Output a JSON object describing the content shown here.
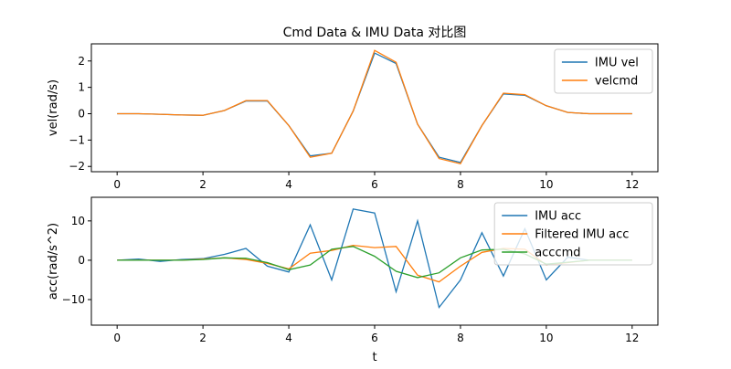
{
  "figure": {
    "title": "Cmd Data & IMU Data 对比图"
  },
  "chart_data": [
    {
      "type": "line",
      "title": "Cmd Data & IMU Data 对比图",
      "xlabel": "",
      "ylabel": "vel(rad/s)",
      "xlim": [
        -0.6,
        12.6
      ],
      "ylim": [
        -2.2,
        2.65
      ],
      "xticks": [
        0,
        2,
        4,
        6,
        8,
        10,
        12
      ],
      "yticks": [
        -2,
        -1,
        0,
        1,
        2
      ],
      "grid": false,
      "legend": "top-right",
      "x": [
        0,
        0.5,
        1,
        1.5,
        2,
        2.5,
        3,
        3.5,
        4,
        4.5,
        5,
        5.5,
        6,
        6.5,
        7,
        7.5,
        8,
        8.5,
        9,
        9.5,
        10,
        10.5,
        11,
        11.5,
        12
      ],
      "series": [
        {
          "name": "IMU vel",
          "color": "#1f77b4",
          "values": [
            0,
            0,
            -0.02,
            -0.05,
            -0.06,
            0.12,
            0.48,
            0.48,
            -0.45,
            -1.6,
            -1.5,
            0.1,
            2.3,
            1.9,
            -0.4,
            -1.65,
            -1.85,
            -0.45,
            0.75,
            0.7,
            0.3,
            0.05,
            0,
            0,
            0
          ]
        },
        {
          "name": "velcmd",
          "color": "#ff7f0e",
          "values": [
            0,
            0,
            -0.02,
            -0.05,
            -0.06,
            0.12,
            0.5,
            0.5,
            -0.45,
            -1.65,
            -1.5,
            0.1,
            2.4,
            1.95,
            -0.4,
            -1.7,
            -1.9,
            -0.45,
            0.78,
            0.72,
            0.3,
            0.05,
            0,
            0,
            0
          ]
        }
      ]
    },
    {
      "type": "line",
      "xlabel": "t",
      "ylabel": "acc(rad/s^2)",
      "xlim": [
        -0.6,
        12.6
      ],
      "ylim": [
        -16.5,
        16
      ],
      "xticks": [
        0,
        2,
        4,
        6,
        8,
        10,
        12
      ],
      "yticks": [
        -10,
        0,
        10
      ],
      "grid": false,
      "legend": "top-right",
      "x": [
        0,
        0.5,
        1,
        1.5,
        2,
        2.5,
        3,
        3.5,
        4,
        4.5,
        5,
        5.5,
        6,
        6.5,
        7,
        7.5,
        8,
        8.5,
        9,
        9.5,
        10,
        10.5,
        11,
        11.5,
        12
      ],
      "series": [
        {
          "name": "IMU acc",
          "color": "#1f77b4",
          "values": [
            0,
            0.3,
            -0.3,
            0.2,
            0.4,
            1.5,
            3,
            -1.5,
            -3,
            9,
            -5,
            13,
            12,
            -8,
            10,
            -12,
            -5,
            7,
            -4,
            8,
            -5,
            0.8,
            0,
            0,
            0
          ]
        },
        {
          "name": "Filtered IMU acc",
          "color": "#ff7f0e",
          "values": [
            0,
            0,
            0,
            0,
            0.3,
            0.6,
            0.2,
            -0.8,
            -2.2,
            1.8,
            2.5,
            3.8,
            3.2,
            3.5,
            -3.8,
            -5.5,
            -1.5,
            2,
            3,
            2.8,
            -1.2,
            -0.6,
            0,
            0,
            0
          ]
        },
        {
          "name": "acccmd",
          "color": "#2ca02c",
          "values": [
            0,
            0,
            0,
            0,
            0.2,
            0.6,
            0.5,
            -0.6,
            -2.4,
            -1.2,
            2.8,
            3.5,
            1,
            -2.8,
            -4.4,
            -3.2,
            0.6,
            2.6,
            2.8,
            1.6,
            -1,
            -0.5,
            0,
            0,
            0
          ]
        }
      ]
    }
  ]
}
